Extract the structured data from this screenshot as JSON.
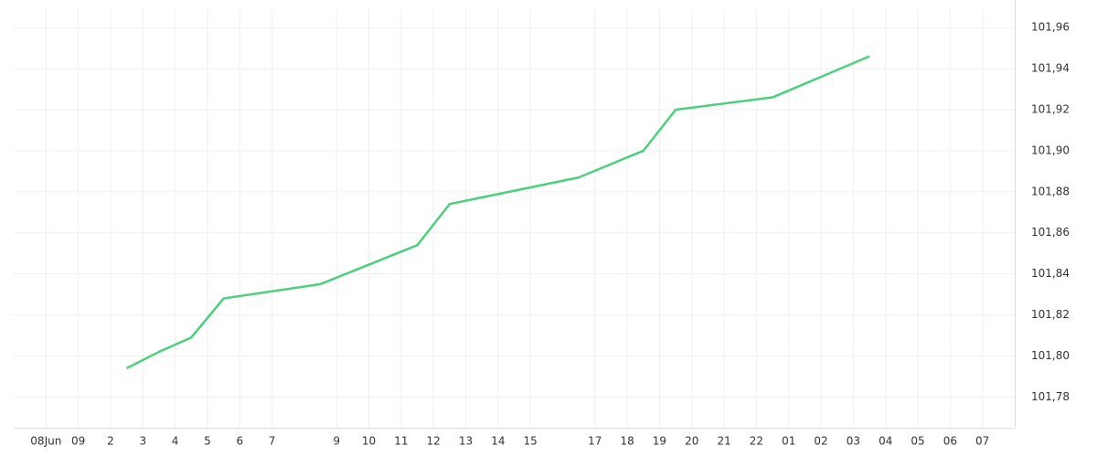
{
  "chart_data": {
    "type": "line",
    "series": [
      {
        "color": "#4cd07d",
        "x": [
          2.5,
          3.5,
          4.5,
          5.5,
          8.5,
          11.5,
          12.5,
          16.5,
          18.5,
          19.5,
          22.5,
          25.5
        ],
        "values": [
          101.794,
          101.802,
          101.809,
          101.828,
          101.835,
          101.854,
          101.874,
          101.887,
          101.9,
          101.92,
          101.926,
          101.946
        ]
      }
    ],
    "xlim": [
      -1,
      30
    ],
    "xticks": [
      {
        "value": 0,
        "label": "08Jun"
      },
      {
        "value": 1,
        "label": "09"
      },
      2,
      3,
      4,
      5,
      6,
      7,
      9,
      10,
      11,
      12,
      13,
      14,
      15,
      17,
      18,
      19,
      20,
      21,
      22,
      {
        "value": 23,
        "label": "01"
      },
      {
        "value": 24,
        "label": "02"
      },
      {
        "value": 25,
        "label": "03"
      },
      {
        "value": 26,
        "label": "04"
      },
      {
        "value": 27,
        "label": "05"
      },
      {
        "value": 28,
        "label": "06"
      },
      {
        "value": 29,
        "label": "07"
      }
    ],
    "ylim": [
      101.765,
      101.969
    ],
    "yticks": [
      {
        "value": 101.78,
        "label": "101,78"
      },
      {
        "value": 101.8,
        "label": "101,80"
      },
      {
        "value": 101.82,
        "label": "101,82"
      },
      {
        "value": 101.84,
        "label": "101,84"
      },
      {
        "value": 101.86,
        "label": "101,86"
      },
      {
        "value": 101.88,
        "label": "101,88"
      },
      {
        "value": 101.9,
        "label": "101,90"
      },
      {
        "value": 101.92,
        "label": "101,92"
      },
      {
        "value": 101.94,
        "label": "101,94"
      },
      {
        "value": 101.96,
        "label": "101,96"
      }
    ],
    "grid": true
  }
}
